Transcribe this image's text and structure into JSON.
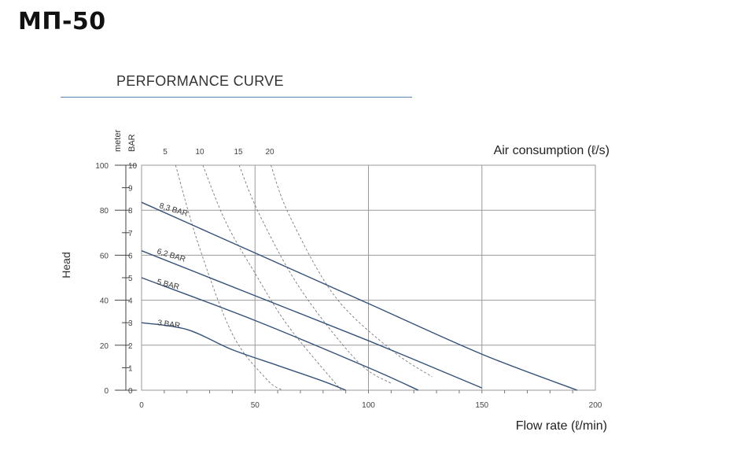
{
  "header": {
    "title": "МП-50",
    "section_title": "PERFORMANCE CURVE"
  },
  "chart_data": {
    "type": "line",
    "xlabel": "Flow rate (ℓ/min)",
    "ylabel": "Head",
    "y2_units": [
      "meter",
      "BAR"
    ],
    "top_axis_label": "Air consumption (ℓ/s)",
    "xlim": [
      0,
      200
    ],
    "ylim_bar": [
      0,
      10
    ],
    "ylim_m": [
      0,
      100
    ],
    "x_ticks": [
      "0",
      "50",
      "100",
      "150",
      "200"
    ],
    "y_ticks_m": [
      "0",
      "20",
      "40",
      "60",
      "80",
      "100"
    ],
    "y_ticks_bar": [
      "0",
      "1",
      "2",
      "3",
      "4",
      "5",
      "6",
      "7",
      "8",
      "9",
      "10"
    ],
    "grid": "on",
    "series": [
      {
        "name": "8,3 BAR",
        "x": [
          0,
          50,
          100,
          150,
          192
        ],
        "y": [
          8.35,
          6.1,
          3.85,
          1.6,
          0
        ]
      },
      {
        "name": "6,2 BAR",
        "x": [
          0,
          50,
          100,
          150
        ],
        "y": [
          6.2,
          4.2,
          2.2,
          0.1
        ]
      },
      {
        "name": "5 BAR",
        "x": [
          0,
          50,
          100,
          122
        ],
        "y": [
          5.0,
          3.1,
          1.0,
          0
        ]
      },
      {
        "name": "3 BAR",
        "x": [
          0,
          20,
          40,
          60,
          80,
          90
        ],
        "y": [
          3.0,
          2.7,
          1.8,
          1.1,
          0.4,
          0
        ]
      }
    ],
    "air_consumption": [
      {
        "label": "5",
        "x": [
          15,
          25,
          40,
          55,
          62
        ],
        "y": [
          10,
          6.5,
          2.5,
          0.5,
          0
        ]
      },
      {
        "label": "10",
        "x": [
          27,
          37,
          50,
          65,
          88
        ],
        "y": [
          10,
          7.5,
          5.2,
          2.8,
          0
        ]
      },
      {
        "label": "15",
        "x": [
          43,
          52,
          70,
          95,
          110
        ],
        "y": [
          10,
          7.8,
          4.5,
          1.3,
          0.3
        ]
      },
      {
        "label": "20",
        "x": [
          57,
          65,
          85,
          110,
          128
        ],
        "y": [
          10,
          7.8,
          4.2,
          1.8,
          0.6
        ]
      }
    ]
  }
}
